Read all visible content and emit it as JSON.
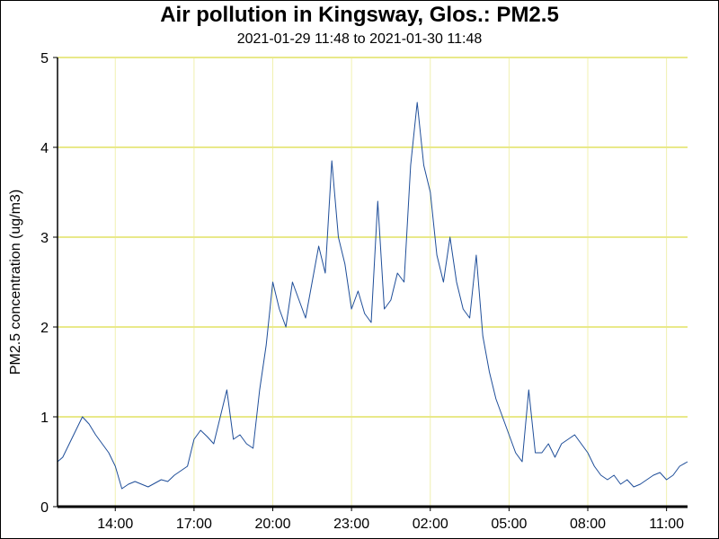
{
  "chart_data": {
    "type": "line",
    "title": "Air pollution in Kingsway, Glos.: PM2.5",
    "subtitle": "2021-01-29 11:48 to 2021-01-30 11:48",
    "xlabel": "",
    "ylabel": "PM2.5 concentration (ug/m3)",
    "ylim": [
      0,
      5
    ],
    "yticks": [
      "0",
      "1",
      "2",
      "3",
      "4",
      "5"
    ],
    "xlim": [
      "2021-01-29 11:48",
      "2021-01-30 11:48"
    ],
    "xticks": [
      "14:00",
      "17:00",
      "20:00",
      "23:00",
      "02:00",
      "05:00",
      "08:00",
      "11:00"
    ],
    "grid": true,
    "colors": {
      "line": "#1f4e99",
      "grid_h": "#e9e98a",
      "grid_v": "#f0f0b0"
    },
    "series": [
      {
        "x": [
          "2021-01-29 11:48",
          "2021-01-29 12:00",
          "2021-01-29 12:15",
          "2021-01-29 12:30",
          "2021-01-29 12:45",
          "2021-01-29 13:00",
          "2021-01-29 13:15",
          "2021-01-29 13:30",
          "2021-01-29 13:45",
          "2021-01-29 14:00",
          "2021-01-29 14:15",
          "2021-01-29 14:30",
          "2021-01-29 14:45",
          "2021-01-29 15:00",
          "2021-01-29 15:15",
          "2021-01-29 15:30",
          "2021-01-29 15:45",
          "2021-01-29 16:00",
          "2021-01-29 16:15",
          "2021-01-29 16:30",
          "2021-01-29 16:45",
          "2021-01-29 17:00",
          "2021-01-29 17:15",
          "2021-01-29 17:30",
          "2021-01-29 17:45",
          "2021-01-29 18:00",
          "2021-01-29 18:15",
          "2021-01-29 18:30",
          "2021-01-29 18:45",
          "2021-01-29 19:00",
          "2021-01-29 19:15",
          "2021-01-29 19:30",
          "2021-01-29 19:45",
          "2021-01-29 20:00",
          "2021-01-29 20:15",
          "2021-01-29 20:30",
          "2021-01-29 20:45",
          "2021-01-29 21:00",
          "2021-01-29 21:15",
          "2021-01-29 21:30",
          "2021-01-29 21:45",
          "2021-01-29 22:00",
          "2021-01-29 22:15",
          "2021-01-29 22:30",
          "2021-01-29 22:45",
          "2021-01-29 23:00",
          "2021-01-29 23:15",
          "2021-01-29 23:30",
          "2021-01-29 23:45",
          "2021-01-30 00:00",
          "2021-01-30 00:15",
          "2021-01-30 00:30",
          "2021-01-30 00:45",
          "2021-01-30 01:00",
          "2021-01-30 01:15",
          "2021-01-30 01:30",
          "2021-01-30 01:45",
          "2021-01-30 02:00",
          "2021-01-30 02:15",
          "2021-01-30 02:30",
          "2021-01-30 02:45",
          "2021-01-30 03:00",
          "2021-01-30 03:15",
          "2021-01-30 03:30",
          "2021-01-30 03:45",
          "2021-01-30 04:00",
          "2021-01-30 04:15",
          "2021-01-30 04:30",
          "2021-01-30 04:45",
          "2021-01-30 05:00",
          "2021-01-30 05:15",
          "2021-01-30 05:30",
          "2021-01-30 05:45",
          "2021-01-30 06:00",
          "2021-01-30 06:15",
          "2021-01-30 06:30",
          "2021-01-30 06:45",
          "2021-01-30 07:00",
          "2021-01-30 07:15",
          "2021-01-30 07:30",
          "2021-01-30 07:45",
          "2021-01-30 08:00",
          "2021-01-30 08:15",
          "2021-01-30 08:30",
          "2021-01-30 08:45",
          "2021-01-30 09:00",
          "2021-01-30 09:15",
          "2021-01-30 09:30",
          "2021-01-30 09:45",
          "2021-01-30 10:00",
          "2021-01-30 10:15",
          "2021-01-30 10:30",
          "2021-01-30 10:45",
          "2021-01-30 11:00",
          "2021-01-30 11:15",
          "2021-01-30 11:30",
          "2021-01-30 11:48"
        ],
        "values": [
          0.5,
          0.55,
          0.7,
          0.85,
          1.0,
          0.92,
          0.8,
          0.7,
          0.6,
          0.45,
          0.2,
          0.25,
          0.28,
          0.25,
          0.22,
          0.26,
          0.3,
          0.28,
          0.35,
          0.4,
          0.45,
          0.75,
          0.85,
          0.78,
          0.7,
          1.0,
          1.3,
          0.75,
          0.8,
          0.7,
          0.65,
          1.3,
          1.8,
          2.5,
          2.2,
          2.0,
          2.5,
          2.3,
          2.1,
          2.5,
          2.9,
          2.6,
          3.85,
          3.0,
          2.7,
          2.2,
          2.4,
          2.15,
          2.05,
          3.4,
          2.2,
          2.3,
          2.6,
          2.5,
          3.8,
          4.5,
          3.8,
          3.5,
          2.8,
          2.5,
          3.0,
          2.5,
          2.2,
          2.1,
          2.8,
          1.9,
          1.5,
          1.2,
          1.0,
          0.8,
          0.6,
          0.5,
          1.3,
          0.6,
          0.6,
          0.7,
          0.55,
          0.7,
          0.75,
          0.8,
          0.7,
          0.6,
          0.45,
          0.35,
          0.3,
          0.35,
          0.25,
          0.3,
          0.22,
          0.25,
          0.3,
          0.35,
          0.38,
          0.3,
          0.35,
          0.45,
          0.5
        ]
      }
    ]
  }
}
